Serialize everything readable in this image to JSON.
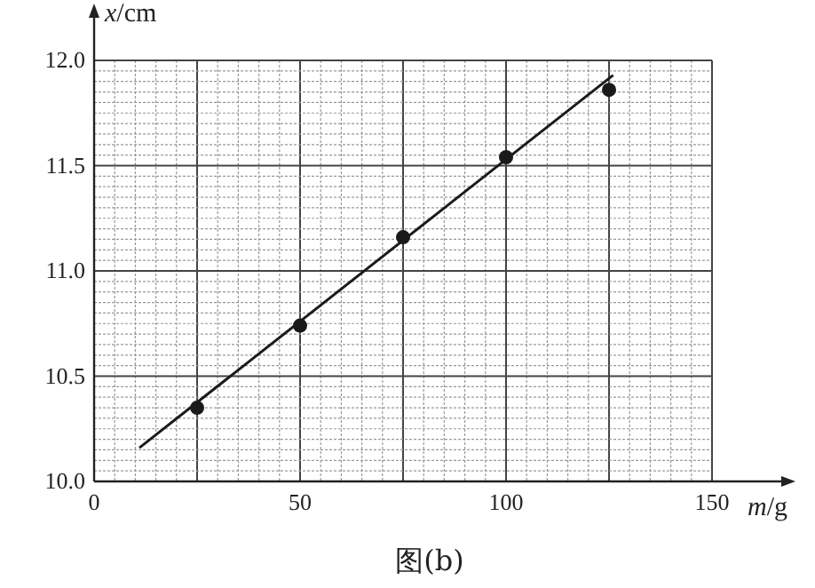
{
  "chart_data": {
    "type": "scatter",
    "xlabel": "m/g",
    "ylabel": "x/cm",
    "annotations": [
      "图(b)"
    ],
    "xlim": [
      0,
      150
    ],
    "xticks": [
      0,
      50,
      100,
      150
    ],
    "ylim": [
      10.0,
      12.0
    ],
    "yticks": [
      {
        "value": 10.0,
        "label": "10.0"
      },
      {
        "value": 10.5,
        "label": "10.5"
      },
      {
        "value": 11.0,
        "label": "11.0"
      },
      {
        "value": 11.5,
        "label": "11.5"
      },
      {
        "value": 12.0,
        "label": "12.0"
      }
    ],
    "grid": true,
    "marker": "circle",
    "series": [
      {
        "color": "#1a1a1a",
        "x": [
          25,
          50,
          75,
          100,
          125
        ],
        "values": [
          10.35,
          10.74,
          11.16,
          11.54,
          11.86
        ]
      },
      {
        "type": "line",
        "color": "#1a1a1a",
        "line_style": "solid",
        "marker": "none",
        "x": [
          11,
          126
        ],
        "values": [
          10.16,
          11.93
        ]
      }
    ]
  }
}
